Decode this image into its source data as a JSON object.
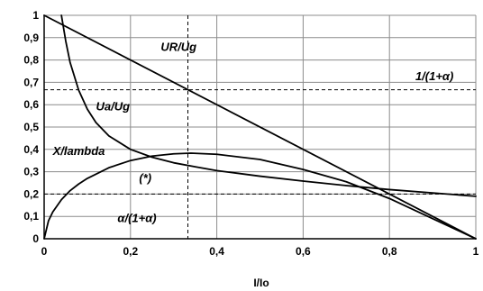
{
  "chart_data": {
    "type": "line",
    "title": "",
    "xlabel": "I/Io",
    "ylabel": "",
    "xlim": [
      0,
      1
    ],
    "ylim": [
      0,
      1
    ],
    "grid": true,
    "x_ticks": [
      "0",
      "0,2",
      "0,4",
      "0,6",
      "0,8",
      "1"
    ],
    "y_ticks": [
      "0",
      "0,1",
      "0,2",
      "0,3",
      "0,4",
      "0,5",
      "0,6",
      "0,7",
      "0,8",
      "0,9",
      "1"
    ],
    "series": [
      {
        "name": "UR/Ug",
        "x": [
          0,
          1
        ],
        "y": [
          1,
          0
        ]
      },
      {
        "name": "Ua/Ug",
        "x": [
          0.04,
          0.05,
          0.06,
          0.08,
          0.1,
          0.12,
          0.15,
          0.2,
          0.25,
          0.3,
          0.35,
          0.4,
          0.5,
          0.6,
          0.7,
          0.8,
          0.9,
          1.0
        ],
        "y": [
          1.0,
          0.885,
          0.79,
          0.665,
          0.58,
          0.52,
          0.46,
          0.4,
          0.365,
          0.34,
          0.322,
          0.305,
          0.28,
          0.258,
          0.238,
          0.22,
          0.205,
          0.19
        ]
      },
      {
        "name": "X/lambda",
        "x": [
          0,
          0.01,
          0.02,
          0.04,
          0.06,
          0.08,
          0.1,
          0.15,
          0.2,
          0.25,
          0.3,
          0.34,
          0.4,
          0.5,
          0.6,
          0.7,
          0.8,
          0.9,
          1.0
        ],
        "y": [
          0,
          0.08,
          0.12,
          0.175,
          0.215,
          0.245,
          0.27,
          0.318,
          0.35,
          0.37,
          0.38,
          0.383,
          0.378,
          0.355,
          0.31,
          0.255,
          0.18,
          0.09,
          0
        ]
      }
    ],
    "reference_lines": [
      {
        "axis": "y",
        "value": 0.667,
        "label": "1/(1+α)"
      },
      {
        "axis": "y",
        "value": 0.2,
        "label": "α/(1+α)"
      },
      {
        "axis": "x",
        "value": 0.333
      }
    ],
    "annotations": [
      {
        "text": "UR/Ug",
        "x": 0.27,
        "y": 0.84
      },
      {
        "text": "Ua/Ug",
        "x": 0.12,
        "y": 0.575
      },
      {
        "text": "X/lambda",
        "x": 0.02,
        "y": 0.375
      },
      {
        "text": "(*)",
        "x": 0.22,
        "y": 0.255
      },
      {
        "text": "1/(1+α)",
        "x": 0.86,
        "y": 0.71
      },
      {
        "text": "α/(1+α)",
        "x": 0.17,
        "y": 0.075
      }
    ]
  }
}
